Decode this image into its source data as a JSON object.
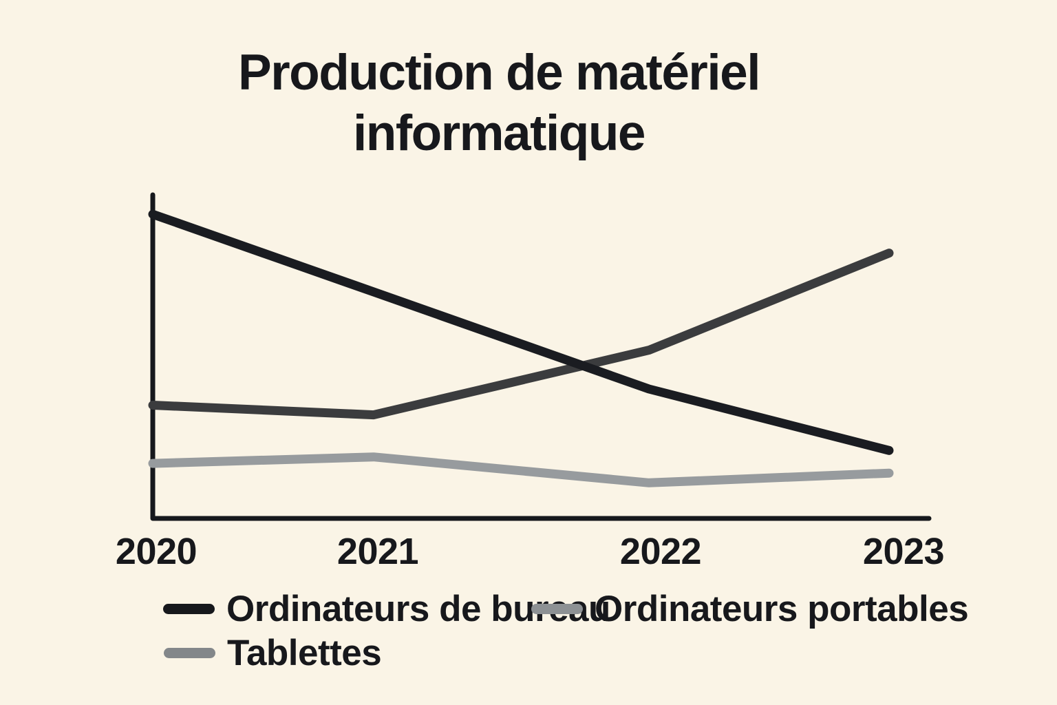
{
  "title": {
    "full": "Production de matériel informatique",
    "lines": [
      "Production de matériel",
      "informatique"
    ]
  },
  "colors": {
    "background": "#faf4e6",
    "axis": "#16181c",
    "text": "#17181c"
  },
  "chart_data": {
    "type": "line",
    "title": "Production de matériel informatique",
    "x": [
      2020,
      2021,
      2022,
      2023
    ],
    "x_labels": [
      "2020",
      "2021",
      "2022",
      "2023"
    ],
    "ylim": [
      0,
      100
    ],
    "y_tick_labels": [],
    "grid": false,
    "legend_position": "bottom",
    "series": [
      {
        "name": "Ordinateurs de bureau",
        "values": [
          94,
          70,
          40,
          21
        ],
        "line_color": "#1a1c21",
        "legend_swatch_color": "#16181c"
      },
      {
        "name": "Ordinateurs portables",
        "values": [
          35,
          32,
          52,
          82
        ],
        "line_color": "#3b3c3e",
        "legend_swatch_color": "#8d9194"
      },
      {
        "name": "Tablettes",
        "values": [
          17,
          19,
          11,
          14
        ],
        "line_color": "#979b9e",
        "legend_swatch_color": "#83878a"
      }
    ]
  }
}
